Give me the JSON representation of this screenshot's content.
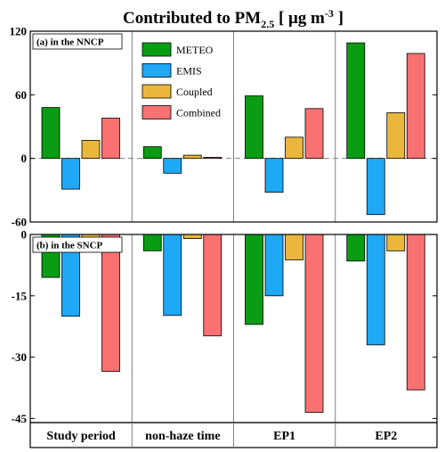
{
  "chart_data": {
    "type": "bar",
    "title": "Contributed to PM",
    "title_sub": "2.5",
    "title_unit_pre": " [ μg m",
    "title_unit_sup": "-3",
    "title_unit_post": " ]",
    "categories": [
      "Study period",
      "non-haze time",
      "EP1",
      "EP2"
    ],
    "legend_position": "top-left of second column",
    "colors": {
      "METEO": "#0a9c12",
      "EMIS": "#1fa8f6",
      "Coupled": "#eab73c",
      "Combined": "#f97171"
    },
    "panels": [
      {
        "label": "(a) in the NNCP",
        "ylim": [
          -60,
          120
        ],
        "yticks": [
          -60,
          0,
          60,
          120
        ],
        "ytick_labels": [
          "-60",
          "0",
          "60",
          "120"
        ],
        "series": [
          {
            "name": "METEO",
            "values": [
              48,
              11,
              59,
              109
            ]
          },
          {
            "name": "EMIS",
            "values": [
              -29,
              -14,
              -32,
              -53
            ]
          },
          {
            "name": "Coupled",
            "values": [
              17,
              3,
              20,
              43
            ]
          },
          {
            "name": "Combined",
            "values": [
              38,
              1,
              47,
              99
            ]
          }
        ]
      },
      {
        "label": "(b) in the SNCP",
        "ylim": [
          -46,
          0
        ],
        "yticks": [
          -45,
          -30,
          -15,
          0
        ],
        "ytick_labels": [
          "-45",
          "-30",
          "-15",
          "0"
        ],
        "series": [
          {
            "name": "METEO",
            "values": [
              -10.5,
              -4,
              -22,
              -6.5
            ]
          },
          {
            "name": "EMIS",
            "values": [
              -20,
              -19.8,
              -15,
              -27
            ]
          },
          {
            "name": "Coupled",
            "values": [
              -3.2,
              -1,
              -6.2,
              -4
            ]
          },
          {
            "name": "Combined",
            "values": [
              -33.5,
              -24.8,
              -43.5,
              -38
            ]
          }
        ]
      }
    ]
  }
}
